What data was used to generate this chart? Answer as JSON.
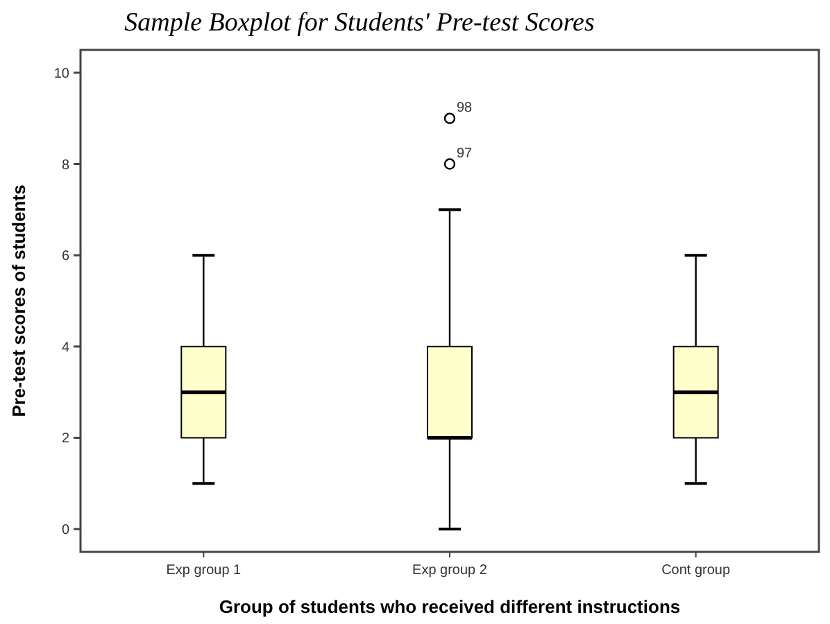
{
  "chart_data": {
    "type": "box",
    "title": "Sample Boxplot for Students' Pre-test Scores",
    "xlabel": "Group of students who received different instructions",
    "ylabel": "Pre-test scores of students",
    "categories": [
      "Exp group 1",
      "Exp group 2",
      "Cont group"
    ],
    "series": [
      {
        "color": "#ffffcc",
        "boxes": [
          {
            "low": 1,
            "q1": 2,
            "median": 3,
            "q3": 4,
            "high": 6
          },
          {
            "low": 0,
            "q1": 2,
            "median": 2,
            "q3": 4,
            "high": 7,
            "outliers": [
              8,
              9
            ]
          },
          {
            "low": 1,
            "q1": 2,
            "median": 3,
            "q3": 4,
            "high": 6
          }
        ]
      }
    ],
    "annotations": [
      "98",
      "97"
    ],
    "ylim": [
      -0.5,
      10.5
    ],
    "yticks": [
      0,
      2,
      4,
      6,
      8,
      10
    ],
    "grid": false
  }
}
